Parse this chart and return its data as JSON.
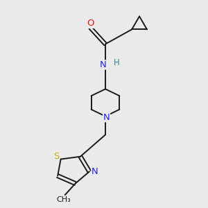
{
  "bg_color": "#ebebeb",
  "bond_color": "#1a1a1a",
  "atom_colors": {
    "O": "#ee1111",
    "N": "#2222ee",
    "S": "#ccaa00",
    "C": "#1a1a1a",
    "H": "#338888"
  },
  "font_size": 8.5,
  "line_width": 1.4
}
